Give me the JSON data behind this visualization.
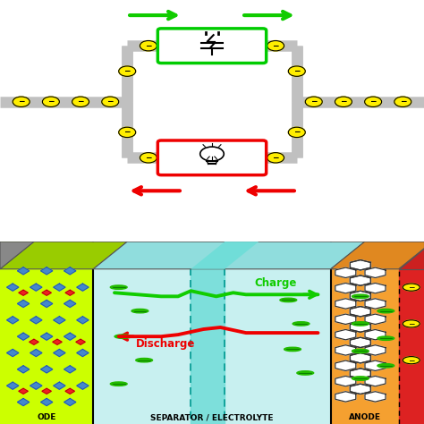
{
  "fig_width": 4.74,
  "fig_height": 4.74,
  "dpi": 100,
  "bg_color": "#ffffff",
  "cathode_color": "#ccff00",
  "electrolyte_color": "#c8f0f0",
  "separator_color": "#70ddd8",
  "anode_color": "#f5a030",
  "anode_right_color": "#dd2222",
  "circuit_wire_color": "#c0c0c0",
  "electron_color": "#ffee00",
  "arrow_green": "#11cc00",
  "arrow_red": "#ee0000",
  "charge_line_color": "#11cc00",
  "discharge_line_color": "#ee0000",
  "label_separator": "SEPARATOR / ELECTROLYTE",
  "label_anode": "ANODE",
  "label_cathode": "ODE",
  "label_charge": "Charge",
  "label_discharge": "Discharge"
}
